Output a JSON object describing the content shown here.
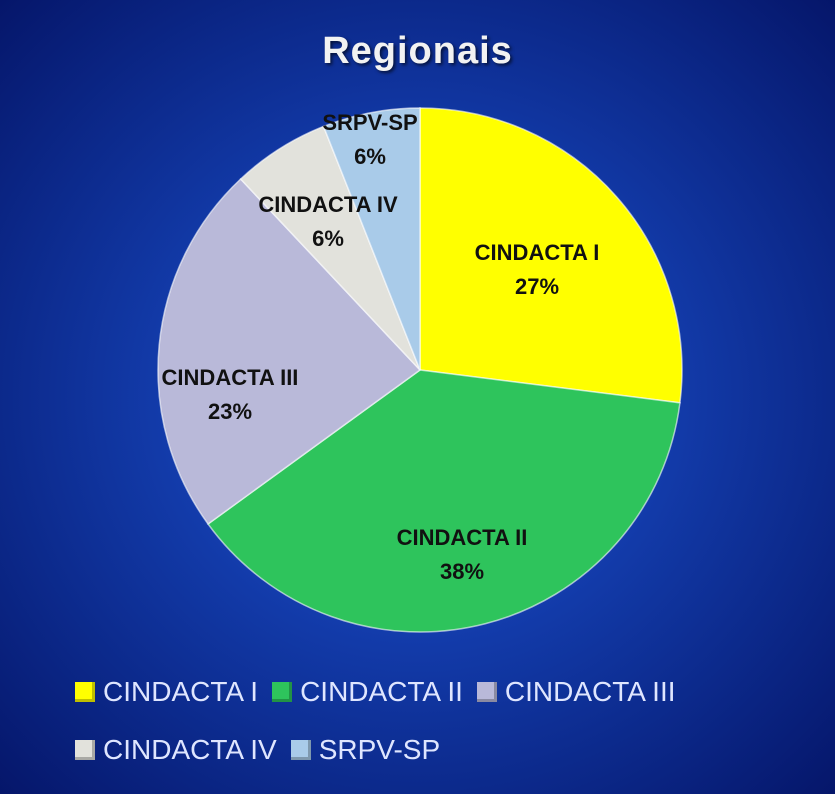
{
  "chart_data": {
    "type": "pie",
    "title": "Regionais",
    "categories": [
      "CINDACTA I",
      "CINDACTA II",
      "CINDACTA III",
      "CINDACTA IV",
      "SRPV-SP"
    ],
    "values": [
      27,
      38,
      23,
      6,
      6
    ],
    "value_labels": [
      "27%",
      "38%",
      "23%",
      "6%",
      "6%"
    ],
    "colors": [
      "#ffff00",
      "#2ec45c",
      "#b9b9d9",
      "#e2e2dc",
      "#a9cbe9"
    ],
    "legend": "bottom"
  }
}
